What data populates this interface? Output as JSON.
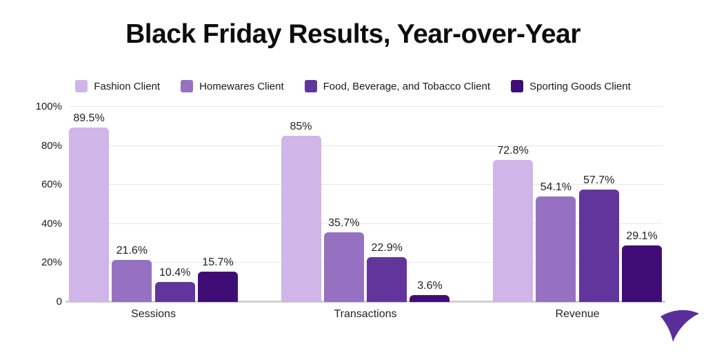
{
  "title": "Black Friday Results, Year-over-Year",
  "chart_data": {
    "type": "bar",
    "categories": [
      "Sessions",
      "Transactions",
      "Revenue"
    ],
    "series": [
      {
        "name": "Fashion Client",
        "color": "#CFB5E8",
        "values": [
          89.5,
          85,
          72.8
        ],
        "labels": [
          "89.5%",
          "85%",
          "72.8%"
        ]
      },
      {
        "name": "Homewares Client",
        "color": "#9671C1",
        "values": [
          21.6,
          35.7,
          54.1
        ],
        "labels": [
          "21.6%",
          "35.7%",
          "54.1%"
        ]
      },
      {
        "name": "Food, Beverage, and Tobacco Client",
        "color": "#61359C",
        "values": [
          10.4,
          22.9,
          57.7
        ],
        "labels": [
          "10.4%",
          "22.9%",
          "57.7%"
        ]
      },
      {
        "name": "Sporting Goods Client",
        "color": "#400D77",
        "values": [
          15.7,
          3.6,
          29.1
        ],
        "labels": [
          "15.7%",
          "3.6%",
          "29.1%"
        ]
      }
    ],
    "y_ticks": [
      {
        "label": "100%",
        "value": 100
      },
      {
        "label": "80%",
        "value": 80
      },
      {
        "label": "60%",
        "value": 60
      },
      {
        "label": "40%",
        "value": 40
      },
      {
        "label": "20%",
        "value": 20
      },
      {
        "label": "0",
        "value": 0
      }
    ],
    "ylim": [
      0,
      100
    ],
    "grid": true,
    "legend_position": "top",
    "value_label_suffix": "%"
  },
  "logo": {
    "name": "swoosh-logo",
    "color": "#5B2D9B"
  }
}
